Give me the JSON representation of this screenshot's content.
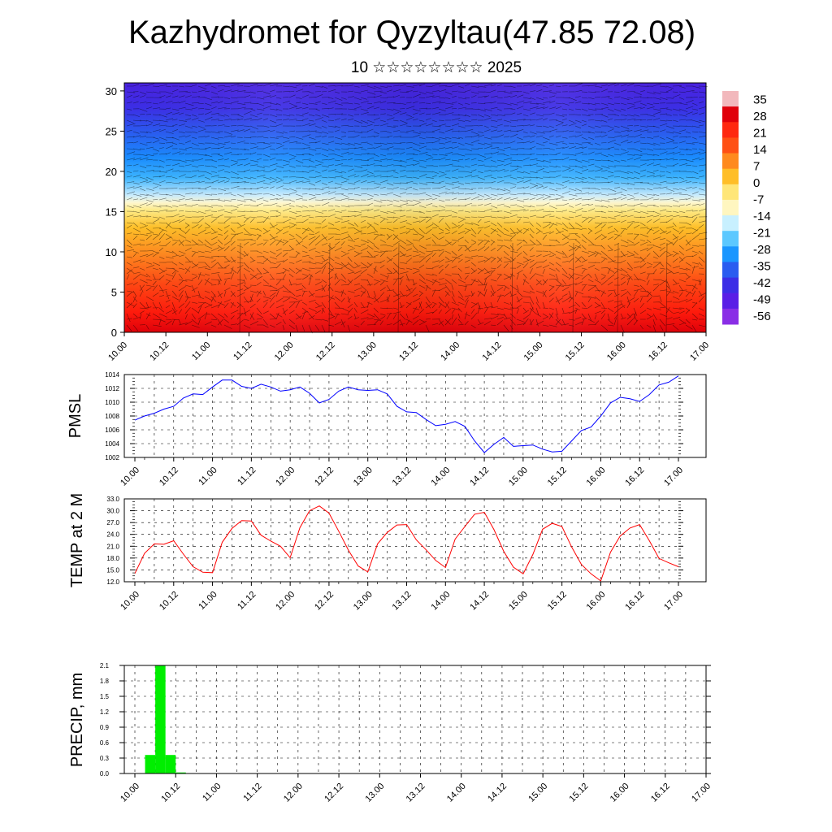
{
  "header": {
    "title": "Kazhydromet for Qyzyltau(47.85 72.08)",
    "subtitle": "10 ☆☆☆☆☆☆☆☆ 2025"
  },
  "colors": {
    "pmsl_line": "#0000ff",
    "temp_line": "#ff0000",
    "precip_bar": "#00ee00",
    "cold": "#4a1ee6",
    "warm": "#e0100a",
    "neutral": "#fff6a0"
  },
  "chart_data": [
    {
      "id": "cross-section",
      "type": "heatmap",
      "title": "",
      "xlabel": "",
      "ylabel": "",
      "x_tick_labels": [
        "10.00",
        "10.12",
        "11.00",
        "11.12",
        "12.00",
        "12.12",
        "13.00",
        "13.12",
        "14.00",
        "14.12",
        "15.00",
        "15.12",
        "16.00",
        "16.12",
        "17.00"
      ],
      "ylim": [
        0,
        31
      ],
      "y_ticks": [
        0,
        5,
        10,
        15,
        20,
        25,
        30
      ],
      "colorbar_labels": [
        "35",
        "28",
        "21",
        "14",
        "7",
        "0",
        "-7",
        "-14",
        "-21",
        "-28",
        "-35",
        "-42",
        "-49",
        "-56"
      ],
      "colorbar_colors": [
        "#f2b8bc",
        "#e0000a",
        "#ff2810",
        "#ff5014",
        "#ff8a1e",
        "#ffbe28",
        "#ffe678",
        "#fff6c0",
        "#c8f0ff",
        "#5cc8ff",
        "#1a96ff",
        "#2a5cf0",
        "#3c2ee6",
        "#5a1ee6",
        "#8a2ee6"
      ],
      "vectors": "wind barbs overlaid",
      "legend": "right"
    },
    {
      "id": "pmsl",
      "type": "line",
      "ylabel": "PMSL",
      "ylim": [
        1002,
        1014
      ],
      "y_ticks": [
        "1002",
        "1004",
        "1006",
        "1008",
        "1010",
        "1012",
        "1014"
      ],
      "x_tick_labels": [
        "10.00",
        "10.12",
        "11.00",
        "11.12",
        "12.00",
        "12.12",
        "13.00",
        "13.12",
        "14.00",
        "14.12",
        "15.00",
        "15.12",
        "16.00",
        "16.12",
        "17.00"
      ],
      "xlim": [
        0,
        168
      ],
      "x": [
        0,
        3,
        6,
        9,
        12,
        15,
        18,
        21,
        24,
        27,
        30,
        33,
        36,
        39,
        42,
        45,
        48,
        51,
        54,
        57,
        60,
        63,
        66,
        69,
        72,
        75,
        78,
        81,
        84,
        87,
        90,
        93,
        96,
        99,
        102,
        105,
        108,
        111,
        114,
        117,
        120,
        123,
        126,
        129,
        132,
        135,
        138,
        141,
        144,
        147,
        150,
        153,
        156,
        159,
        162,
        165,
        168
      ],
      "values": [
        1007.4,
        1008.0,
        1008.4,
        1009.0,
        1009.4,
        1010.6,
        1011.2,
        1011.1,
        1012.2,
        1013.2,
        1013.2,
        1012.3,
        1012.0,
        1012.6,
        1012.2,
        1011.6,
        1011.8,
        1012.2,
        1011.3,
        1009.9,
        1010.4,
        1011.6,
        1012.2,
        1011.8,
        1011.7,
        1011.8,
        1011.2,
        1009.4,
        1008.6,
        1008.5,
        1007.5,
        1006.6,
        1006.8,
        1007.2,
        1006.5,
        1004.4,
        1002.7,
        1003.9,
        1004.9,
        1003.6,
        1003.7,
        1003.8,
        1003.2,
        1002.8,
        1002.9,
        1004.4,
        1005.9,
        1006.4,
        1008.0,
        1009.9,
        1010.7,
        1010.5,
        1010.1,
        1011.1,
        1012.5,
        1012.9,
        1013.8
      ]
    },
    {
      "id": "temp",
      "type": "line",
      "ylabel": "TEMP at 2 M",
      "ylim": [
        12.0,
        33.0
      ],
      "y_ticks": [
        "12.0",
        "15.0",
        "18.0",
        "21.0",
        "24.0",
        "27.0",
        "30.0",
        "33.0"
      ],
      "x_tick_labels": [
        "10.00",
        "10.12",
        "11.00",
        "11.12",
        "12.00",
        "12.12",
        "13.00",
        "13.12",
        "14.00",
        "14.12",
        "15.00",
        "15.12",
        "16.00",
        "16.12",
        "17.00"
      ],
      "xlim": [
        0,
        168
      ],
      "x": [
        0,
        3,
        6,
        9,
        12,
        15,
        18,
        21,
        24,
        27,
        30,
        33,
        36,
        39,
        42,
        45,
        48,
        51,
        54,
        57,
        60,
        63,
        66,
        69,
        72,
        75,
        78,
        81,
        84,
        87,
        90,
        93,
        96,
        99,
        102,
        105,
        108,
        111,
        114,
        117,
        120,
        123,
        126,
        129,
        132,
        135,
        138,
        141,
        144,
        147,
        150,
        153,
        156,
        159,
        162,
        165,
        168
      ],
      "values": [
        14.1,
        19.2,
        21.6,
        21.5,
        22.4,
        19.0,
        15.8,
        14.4,
        14.3,
        22.0,
        25.5,
        27.5,
        27.4,
        23.8,
        22.3,
        21.0,
        18.1,
        25.7,
        30.0,
        31.2,
        29.4,
        24.8,
        20.0,
        16.0,
        14.5,
        21.6,
        24.5,
        26.4,
        26.5,
        22.6,
        20.1,
        17.4,
        15.6,
        22.8,
        26.0,
        29.1,
        29.6,
        25.2,
        19.7,
        15.7,
        14.0,
        18.9,
        25.3,
        26.8,
        26.0,
        20.8,
        16.4,
        14.0,
        12.2,
        19.5,
        23.6,
        25.6,
        26.5,
        22.4,
        17.9,
        16.8,
        15.8
      ]
    },
    {
      "id": "precip",
      "type": "bar",
      "ylabel": "PRECIP, mm",
      "ylim": [
        0.0,
        2.1
      ],
      "y_ticks": [
        "0.0",
        "0.3",
        "0.6",
        "0.9",
        "1.2",
        "1.5",
        "1.8",
        "2.1"
      ],
      "x_tick_labels": [
        "10.00",
        "10.12",
        "11.00",
        "11.12",
        "12.00",
        "12.12",
        "13.00",
        "13.12",
        "14.00",
        "14.12",
        "15.00",
        "15.12",
        "16.00",
        "16.12",
        "17.00"
      ],
      "xlim": [
        -3,
        168
      ],
      "bars": [
        {
          "x_start": 3,
          "x_end": 6,
          "value": 0.36
        },
        {
          "x_start": 6,
          "x_end": 9,
          "value": 2.1
        },
        {
          "x_start": 9,
          "x_end": 12,
          "value": 0.36
        },
        {
          "x_start": 12,
          "x_end": 15,
          "value": 0.02
        }
      ]
    }
  ]
}
